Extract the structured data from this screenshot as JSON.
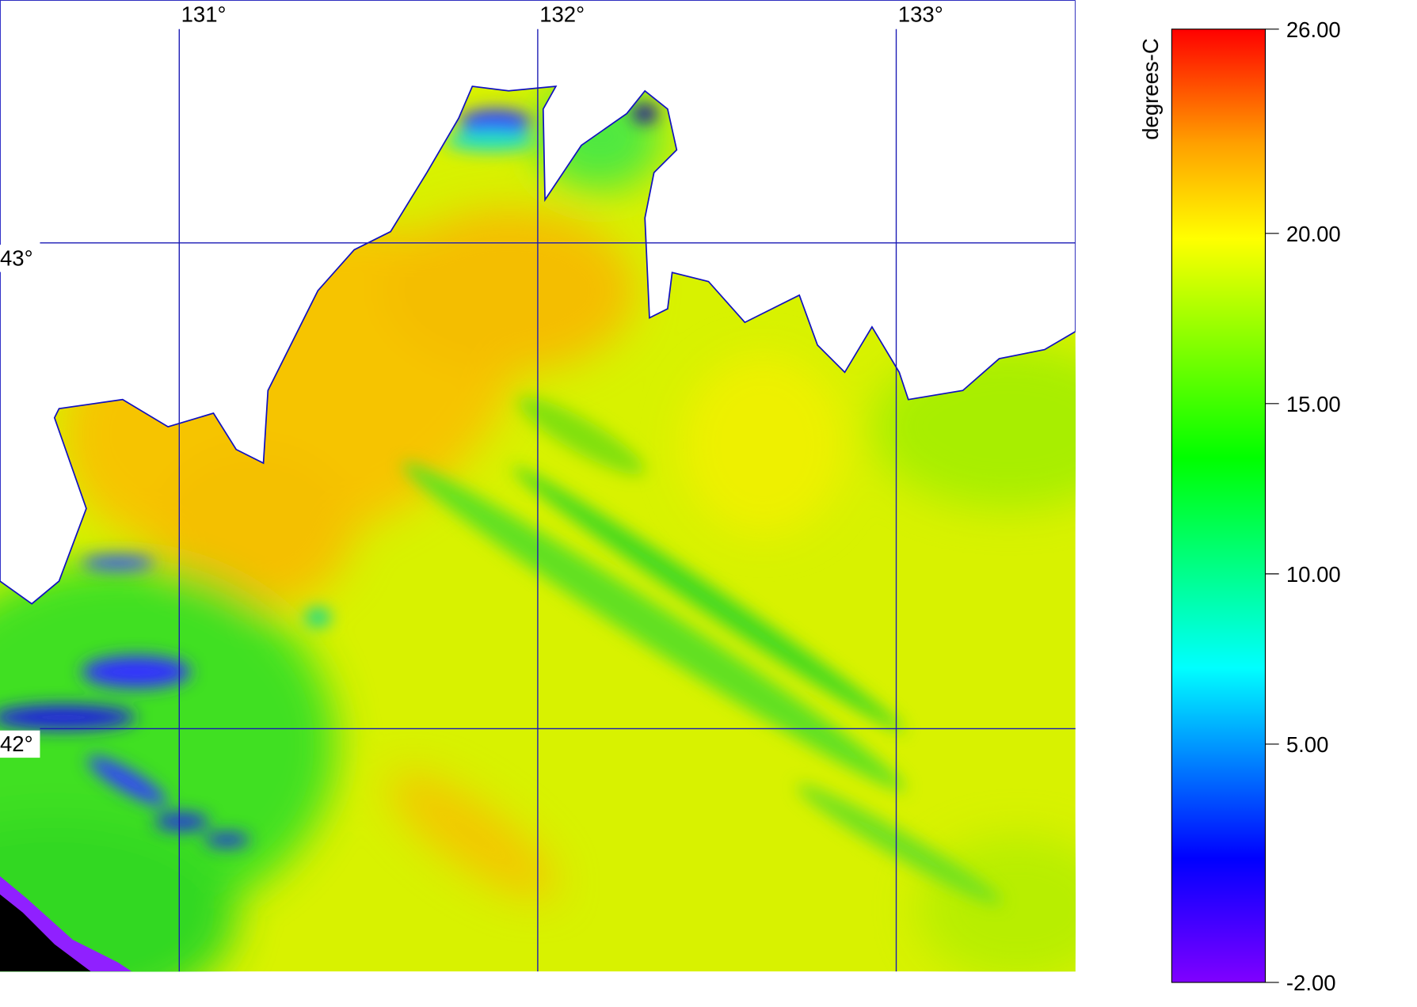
{
  "map": {
    "xlim": [
      130.5,
      133.5
    ],
    "ylim": [
      41.5,
      43.5
    ],
    "lon_ticks": [
      {
        "value": 131,
        "label": "131°"
      },
      {
        "value": 132,
        "label": "132°"
      },
      {
        "value": 133,
        "label": "133°"
      }
    ],
    "lat_ticks": [
      {
        "value": 43,
        "label": "43°"
      },
      {
        "value": 42,
        "label": "42°"
      }
    ]
  },
  "colorbar": {
    "label": "degrees-C",
    "vlim": [
      -2,
      26
    ],
    "ticks": [
      {
        "value": 26,
        "label": "26.00"
      },
      {
        "value": 20,
        "label": "20.00"
      },
      {
        "value": 15,
        "label": "15.00"
      },
      {
        "value": 10,
        "label": "10.00"
      },
      {
        "value": 5,
        "label": "5.00"
      },
      {
        "value": -2,
        "label": "-2.00"
      }
    ]
  }
}
